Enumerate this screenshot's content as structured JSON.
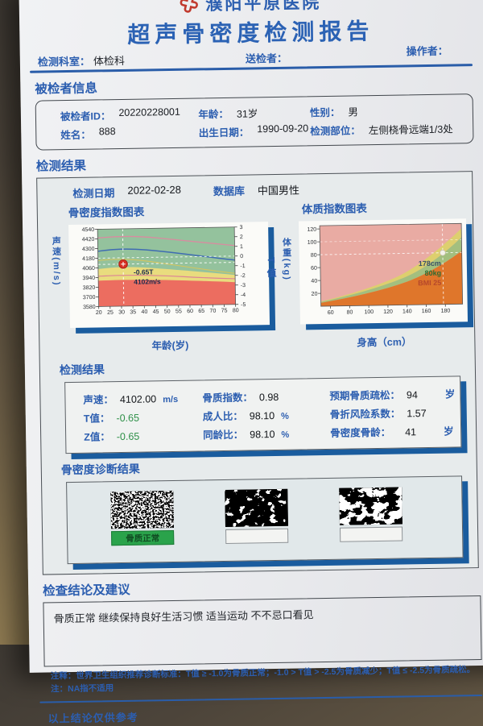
{
  "header": {
    "hospital": "濮阳平原医院",
    "title": "超声骨密度检测报告",
    "dept_label": "检测科室：",
    "dept_value": "体检科",
    "sender_label": "送检者：",
    "sender_value": "",
    "operator_label": "操作者：",
    "operator_value": ""
  },
  "subject": {
    "section_title": "被检者信息",
    "id_label": "被检者ID：",
    "id_value": "20220228001",
    "name_label": "姓名：",
    "name_value": "888",
    "age_label": "年龄：",
    "age_value": "31岁",
    "birth_label": "出生日期：",
    "birth_value": "1990-09-20",
    "gender_label": "性别：",
    "gender_value": "男",
    "site_label": "检测部位：",
    "site_value": "左侧桡骨远端1/3处"
  },
  "results": {
    "section_title": "检测结果",
    "date_label": "检测日期",
    "date_value": "2022-02-28",
    "db_label": "数据库",
    "db_value": "中国男性",
    "values_title": "检测结果",
    "values": [
      {
        "label": "声速：",
        "value": "4102.00",
        "unit": "m/s"
      },
      {
        "label": "T值：",
        "value": "-0.65",
        "unit": ""
      },
      {
        "label": "Z值：",
        "value": "-0.65",
        "unit": ""
      },
      {
        "label": "骨质指数：",
        "value": "0.98",
        "unit": ""
      },
      {
        "label": "成人比：",
        "value": "98.10",
        "unit": "%"
      },
      {
        "label": "同龄比：",
        "value": "98.10",
        "unit": "%"
      },
      {
        "label": "预期骨质疏松：",
        "value": "94",
        "unit": "岁"
      },
      {
        "label": "骨折风险系数：",
        "value": "1.57",
        "unit": ""
      },
      {
        "label": "骨密度骨龄：",
        "value": "41",
        "unit": "岁"
      }
    ]
  },
  "chart_data": [
    {
      "type": "area",
      "title": "骨密度指数图表",
      "xlabel": "年龄(岁)",
      "ylabel": "声速(m/s)",
      "y2label": "T值",
      "xticks": [
        20,
        25,
        30,
        35,
        40,
        45,
        50,
        55,
        60,
        65,
        70,
        75,
        80
      ],
      "yticks": [
        4540,
        4420,
        4300,
        4180,
        4060,
        3940,
        3820,
        3700,
        3580
      ],
      "y2ticks": [
        3,
        2,
        1,
        0,
        -1,
        -2,
        -3,
        -4,
        -5
      ],
      "xlim": [
        20,
        80
      ],
      "ylim": [
        3580,
        4540
      ],
      "y2lim": [
        -5,
        3
      ],
      "zones": [
        {
          "name": "骨质正常",
          "t_range": "T >= -1",
          "color": "#94c29d"
        },
        {
          "name": "骨质减少",
          "t_range": "-2.5 < T < -1",
          "color": "#e9dc7e"
        },
        {
          "name": "骨质疏松",
          "t_range": "T <= -2.5",
          "color": "#ec6d60"
        }
      ],
      "point": {
        "age": 31,
        "sos_m_s": 4102,
        "t_value": -0.65
      },
      "annotations": [
        "-0.65T",
        "4102m/s"
      ]
    },
    {
      "type": "area",
      "title": "体质指数图表",
      "xlabel": "身高（cm）",
      "ylabel": "体重(kg)",
      "xticks": [
        60,
        80,
        100,
        120,
        140,
        160,
        180
      ],
      "yticks": [
        120,
        100,
        80,
        60,
        40,
        20
      ],
      "xlim": [
        50,
        198
      ],
      "ylim": [
        0,
        125
      ],
      "point": {
        "height_cm": 178,
        "weight_kg": 80,
        "bmi": 25
      },
      "annotations": [
        "178cm",
        "80kg",
        "BMI 25"
      ]
    }
  ],
  "diagnosis": {
    "section_title": "骨密度诊断结果",
    "labels": [
      "骨质正常",
      "",
      ""
    ]
  },
  "conclusion": {
    "section_title": "检查结论及建议",
    "text": "骨质正常  继续保持良好生活习惯  适当运动  不不忌口看见"
  },
  "footer": {
    "note1": "注释：世界卫生组织推荐诊断标准：T值 ≥ -1.0为骨质正常；-1.0 > T值 > -2.5为骨质减少；T值 ≤ -2.5为骨质疏松。",
    "note2": "注：NA指不适用",
    "disclaimer": "以上结论仅供参考"
  }
}
